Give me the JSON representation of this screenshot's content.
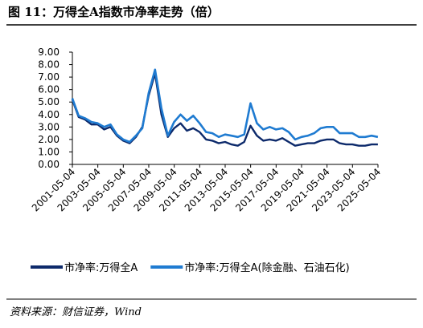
{
  "chart_data": {
    "type": "line",
    "title": "图 11：万得全A指数市净率走势（倍）",
    "source": "资料来源：财信证券，Wind",
    "x": [
      "2001-05",
      "2001-11",
      "2002-05",
      "2002-11",
      "2003-05",
      "2003-11",
      "2004-05",
      "2004-11",
      "2005-05",
      "2005-11",
      "2006-05",
      "2006-11",
      "2007-05",
      "2007-11",
      "2008-05",
      "2008-11",
      "2009-05",
      "2009-11",
      "2010-05",
      "2010-11",
      "2011-05",
      "2011-11",
      "2012-05",
      "2012-11",
      "2013-05",
      "2013-11",
      "2014-05",
      "2014-11",
      "2015-05",
      "2015-11",
      "2016-05",
      "2016-11",
      "2017-05",
      "2017-11",
      "2018-05",
      "2018-11",
      "2019-05",
      "2019-11",
      "2020-05",
      "2020-11",
      "2021-05",
      "2021-11",
      "2022-05",
      "2022-11",
      "2023-05",
      "2023-11",
      "2024-05",
      "2024-11",
      "2025-05"
    ],
    "series": [
      {
        "name": "市净率:万得全A",
        "color": "#0d2a6b",
        "values": [
          5.2,
          3.8,
          3.6,
          3.2,
          3.2,
          2.8,
          3.0,
          2.3,
          1.9,
          1.7,
          2.2,
          3.0,
          5.5,
          7.3,
          4.0,
          2.2,
          2.9,
          3.3,
          2.7,
          2.9,
          2.6,
          2.0,
          1.9,
          1.7,
          1.8,
          1.6,
          1.5,
          1.8,
          3.1,
          2.3,
          1.9,
          2.0,
          1.9,
          2.1,
          1.8,
          1.5,
          1.6,
          1.7,
          1.7,
          1.9,
          2.0,
          2.0,
          1.7,
          1.6,
          1.6,
          1.5,
          1.5,
          1.6,
          1.6
        ]
      },
      {
        "name": "市净率:万得全A(除金融、石油石化)",
        "color": "#1f7bd1",
        "values": [
          5.3,
          3.9,
          3.7,
          3.4,
          3.3,
          3.0,
          3.2,
          2.4,
          2.0,
          1.8,
          2.3,
          2.9,
          5.7,
          7.6,
          4.5,
          2.3,
          3.4,
          4.0,
          3.5,
          3.9,
          3.3,
          2.6,
          2.5,
          2.2,
          2.4,
          2.3,
          2.2,
          2.4,
          4.9,
          3.3,
          2.8,
          3.0,
          2.8,
          2.9,
          2.6,
          2.0,
          2.2,
          2.3,
          2.5,
          2.9,
          3.0,
          3.0,
          2.5,
          2.5,
          2.5,
          2.2,
          2.2,
          2.3,
          2.2
        ]
      }
    ],
    "xlim": [
      "2001-05-04",
      "2025-05-04"
    ],
    "xticks": [
      "2001-05-04",
      "2003-05-04",
      "2005-05-04",
      "2007-05-04",
      "2009-05-04",
      "2011-05-04",
      "2013-05-04",
      "2015-05-04",
      "2017-05-04",
      "2019-05-04",
      "2021-05-04",
      "2023-05-04",
      "2025-05-04"
    ],
    "ylim": [
      0,
      9
    ],
    "yticks": [
      {
        "value": 0,
        "label": "0.00"
      },
      {
        "value": 1,
        "label": "1.00"
      },
      {
        "value": 2,
        "label": "2.00"
      },
      {
        "value": 3,
        "label": "3.00"
      },
      {
        "value": 4,
        "label": "4.00"
      },
      {
        "value": 5,
        "label": "5.00"
      },
      {
        "value": 6,
        "label": "6.00"
      },
      {
        "value": 7,
        "label": "7.00"
      },
      {
        "value": 8,
        "label": "8.00"
      },
      {
        "value": 9,
        "label": "9.00"
      }
    ]
  }
}
